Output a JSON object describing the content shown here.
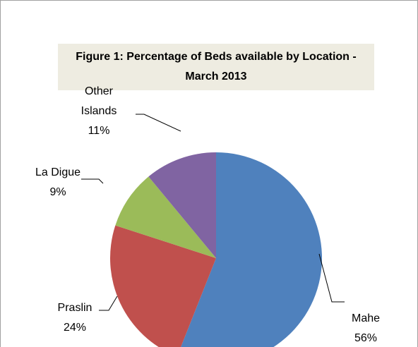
{
  "chart_data": {
    "type": "pie",
    "title": "Figure 1: Percentage of Beds available by Location - March 2013",
    "categories": [
      "Mahe",
      "Praslin",
      "La Digue",
      "Other Islands"
    ],
    "values": [
      56,
      24,
      9,
      11
    ],
    "value_labels": [
      "56%",
      "24%",
      "9%",
      "11%"
    ],
    "colors": [
      "#4f81bd",
      "#c0504d",
      "#9bbb59",
      "#8064a2"
    ]
  }
}
